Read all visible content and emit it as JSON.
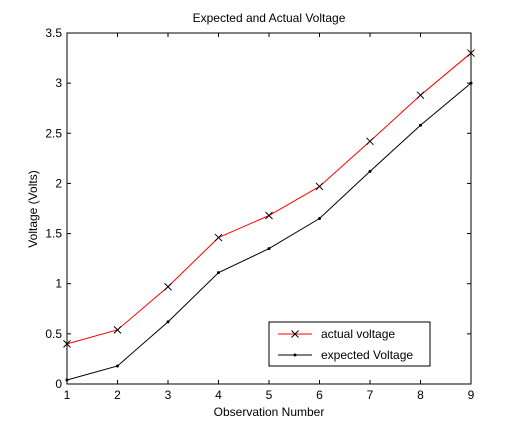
{
  "chart_data": {
    "type": "line",
    "title": "Expected and Actual Voltage",
    "xlabel": "Observation Number",
    "ylabel": "Voltage (Volts)",
    "xlim": [
      1,
      9
    ],
    "ylim": [
      0,
      3.5
    ],
    "x_ticks": [
      1,
      2,
      3,
      4,
      5,
      6,
      7,
      8,
      9
    ],
    "y_ticks": [
      0,
      0.5,
      1,
      1.5,
      2,
      2.5,
      3,
      3.5
    ],
    "x_tick_labels": [
      "1",
      "2",
      "3",
      "4",
      "5",
      "6",
      "7",
      "8",
      "9"
    ],
    "y_tick_labels": [
      "0",
      "0.5",
      "1",
      "1.5",
      "2",
      "2.5",
      "3",
      "3.5"
    ],
    "grid": false,
    "legend_position": "bottom-right",
    "x": [
      1,
      2,
      3,
      4,
      5,
      6,
      7,
      8,
      9
    ],
    "series": [
      {
        "name": "actual voltage",
        "color": "#ff0000",
        "marker": "x",
        "values": [
          0.4,
          0.54,
          0.97,
          1.46,
          1.68,
          1.97,
          2.42,
          2.88,
          3.3
        ]
      },
      {
        "name": "expected Voltage",
        "color": "#000000",
        "marker": "point",
        "values": [
          0.04,
          0.18,
          0.62,
          1.11,
          1.35,
          1.65,
          2.12,
          2.58,
          3.0
        ]
      }
    ]
  }
}
